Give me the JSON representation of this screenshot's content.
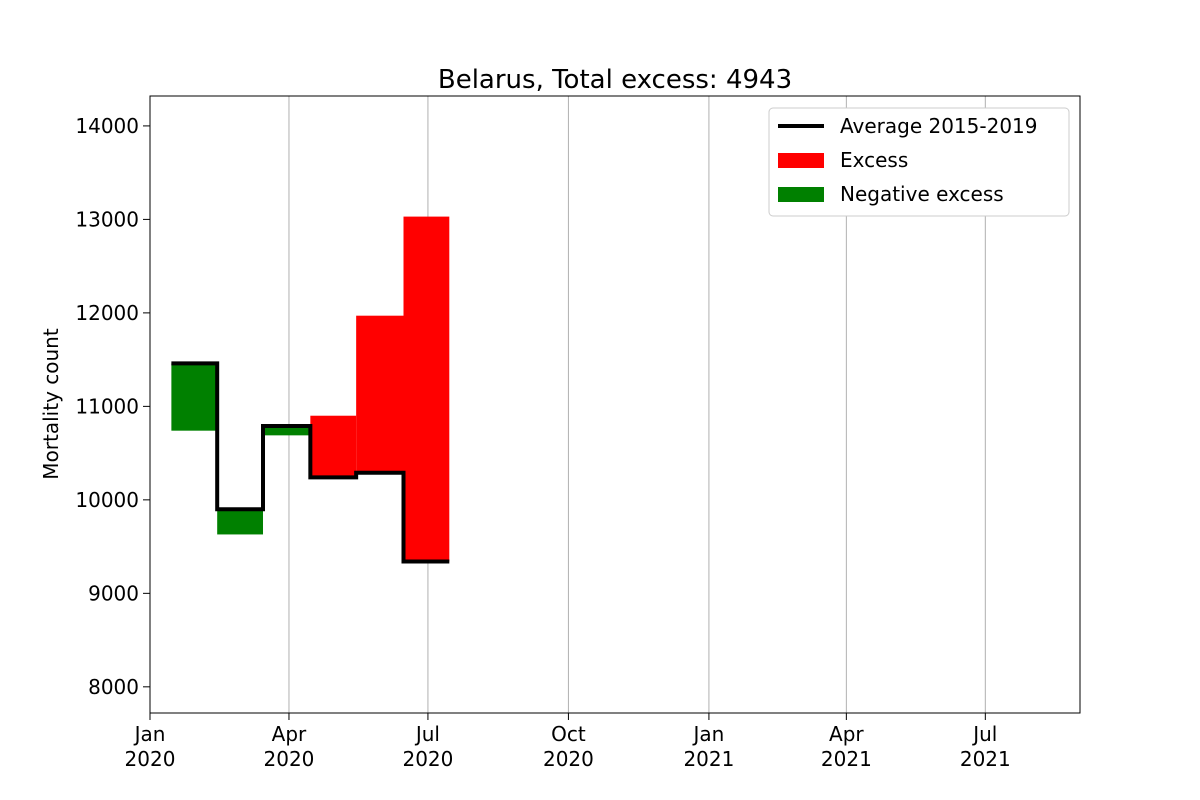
{
  "chart_data": {
    "type": "bar",
    "title": "Belarus, Total excess: 4943",
    "xlabel": "",
    "ylabel": "Mortality count",
    "ylim": [
      7720,
      14320
    ],
    "xlim": [
      "2020-01-01",
      "2021-09-01"
    ],
    "grid": "vertical",
    "legend_position": "top-right",
    "y_ticks": [
      8000,
      9000,
      10000,
      11000,
      12000,
      13000,
      14000
    ],
    "x_ticks": [
      {
        "date": "2020-01-01",
        "month": "Jan",
        "year": "2020"
      },
      {
        "date": "2020-04-01",
        "month": "Apr",
        "year": "2020"
      },
      {
        "date": "2020-07-01",
        "month": "Jul",
        "year": "2020"
      },
      {
        "date": "2020-10-01",
        "month": "Oct",
        "year": "2020"
      },
      {
        "date": "2021-01-01",
        "month": "Jan",
        "year": "2021"
      },
      {
        "date": "2021-04-01",
        "month": "Apr",
        "year": "2021"
      },
      {
        "date": "2021-07-01",
        "month": "Jul",
        "year": "2021"
      }
    ],
    "months": [
      {
        "start": "2020-01-15",
        "end": "2020-02-14",
        "average": 11460,
        "actual": 10740
      },
      {
        "start": "2020-02-14",
        "end": "2020-03-15",
        "average": 9900,
        "actual": 9630
      },
      {
        "start": "2020-03-15",
        "end": "2020-04-15",
        "average": 10790,
        "actual": 10690
      },
      {
        "start": "2020-04-15",
        "end": "2020-05-15",
        "average": 10240,
        "actual": 10900
      },
      {
        "start": "2020-05-15",
        "end": "2020-06-15",
        "average": 10290,
        "actual": 11970
      },
      {
        "start": "2020-06-15",
        "end": "2020-07-15",
        "average": 9340,
        "actual": 13030
      }
    ],
    "legend": {
      "average_label": "Average 2015-2019",
      "excess_label": "Excess",
      "negative_label": "Negative excess"
    },
    "colors": {
      "average": "#000000",
      "excess": "#ff0000",
      "negative": "#008000",
      "grid": "#b0b0b0"
    }
  }
}
